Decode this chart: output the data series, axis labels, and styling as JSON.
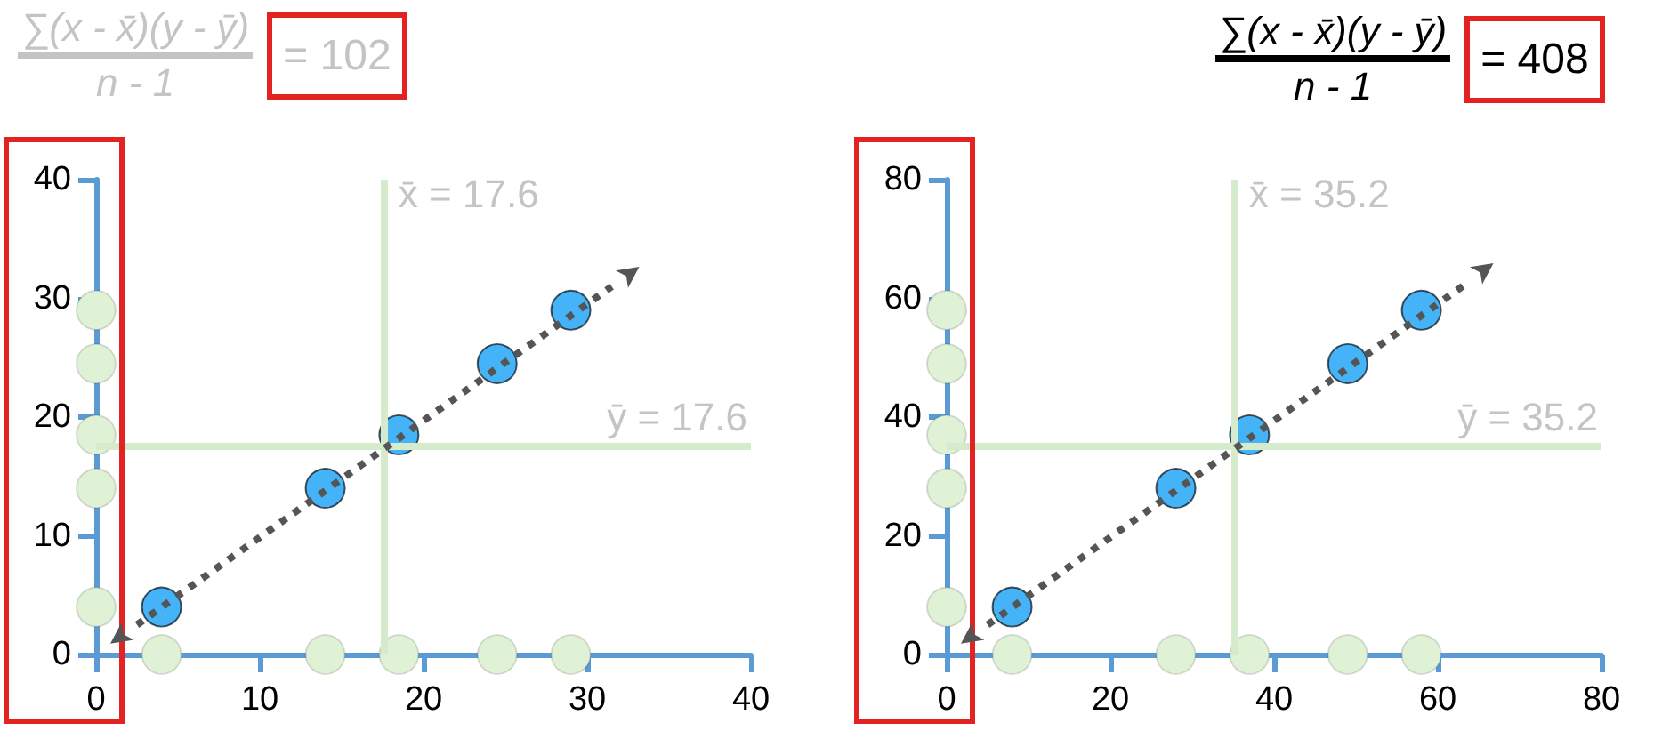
{
  "chart_data": [
    {
      "type": "scatter",
      "title": "∑(x - x̄)(y - ȳ)",
      "subtitle": "n - 1",
      "annotations": [
        "= 102"
      ],
      "xlim": [
        0,
        40
      ],
      "xticks": [
        0,
        10,
        20,
        30,
        40
      ],
      "ylim": [
        0,
        40
      ],
      "yticks": [
        0,
        10,
        20,
        30,
        40
      ],
      "marker": "circle",
      "series": [
        {
          "color": "#e0f2d6",
          "x": [
            4,
            14,
            18.5,
            24.5,
            29
          ],
          "values": [
            0,
            0,
            0,
            0,
            0
          ]
        },
        {
          "color": "#e0f2d6",
          "x": [
            0,
            0,
            0,
            0,
            0
          ],
          "values": [
            4,
            14,
            18.5,
            24.5,
            29
          ]
        },
        {
          "color": "#45b3f7",
          "x": [
            4,
            14,
            18.5,
            24.5,
            29
          ],
          "values": [
            4,
            14,
            18.5,
            24.5,
            29
          ]
        },
        {
          "type": "line",
          "color": "#555555",
          "x": [
            2.5,
            31.5
          ],
          "values": [
            2.5,
            31
          ],
          "line_style": "dotted",
          "marker": "none"
        }
      ],
      "ref_lines": [
        {
          "axis": "x",
          "value": 17.6,
          "label": "x̄ = 17.6",
          "color": "#d5ebcc"
        },
        {
          "axis": "y",
          "value": 17.6,
          "label": "ȳ = 17.6",
          "color": "#d5ebcc"
        }
      ]
    },
    {
      "type": "scatter",
      "title": "∑(x - x̄)(y - ȳ)",
      "subtitle": "n - 1",
      "annotations": [
        "= 408"
      ],
      "xlim": [
        0,
        80
      ],
      "xticks": [
        0,
        20,
        40,
        60,
        80
      ],
      "ylim": [
        0,
        80
      ],
      "yticks": [
        0,
        20,
        40,
        60,
        80
      ],
      "marker": "circle",
      "series": [
        {
          "color": "#e0f2d6",
          "x": [
            8,
            28,
            37,
            49,
            58
          ],
          "values": [
            0,
            0,
            0,
            0,
            0
          ]
        },
        {
          "color": "#e0f2d6",
          "x": [
            0,
            0,
            0,
            0,
            0
          ],
          "values": [
            8,
            28,
            37,
            49,
            58
          ]
        },
        {
          "color": "#45b3f7",
          "x": [
            8,
            28,
            37,
            49,
            58
          ],
          "values": [
            8,
            28,
            37,
            49,
            58
          ]
        },
        {
          "type": "line",
          "color": "#555555",
          "x": [
            5,
            63.5
          ],
          "values": [
            5,
            62.5
          ],
          "line_style": "dotted",
          "marker": "none"
        }
      ],
      "ref_lines": [
        {
          "axis": "x",
          "value": 35.2,
          "label": "x̄ = 35.2",
          "color": "#d5ebcc"
        },
        {
          "axis": "y",
          "value": 35.2,
          "label": "ȳ = 35.2",
          "color": "#d5ebcc"
        }
      ]
    }
  ]
}
